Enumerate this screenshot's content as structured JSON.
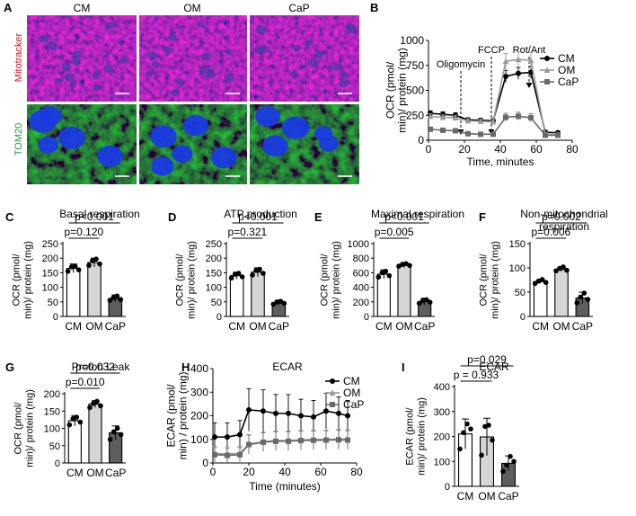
{
  "panel_a": {
    "letter": "A",
    "columns": [
      "CM",
      "OM",
      "CaP"
    ],
    "rows": [
      "Mitotracker",
      "TOM20"
    ],
    "row_colors": [
      "#d4141a",
      "#1f9a3a"
    ]
  },
  "chart_data": [
    {
      "id": "B",
      "letter": "B",
      "type": "line",
      "xlabel": "Time, minutes",
      "ylabel": "OCR (pmol/min)/ protein (mg)",
      "xlim": [
        0,
        80
      ],
      "ylim": [
        0,
        1000
      ],
      "xticks": [
        0,
        20,
        40,
        60,
        80
      ],
      "yticks": [
        0,
        250,
        500,
        750,
        1000
      ],
      "x": [
        1,
        8,
        15,
        22,
        29,
        36,
        43,
        50,
        57,
        65,
        72
      ],
      "series": [
        {
          "name": "CM",
          "color": "#000000",
          "marker": "circle",
          "values": [
            270,
            260,
            250,
            205,
            200,
            195,
            640,
            670,
            680,
            80,
            75
          ],
          "errors": [
            25,
            25,
            25,
            20,
            20,
            20,
            60,
            60,
            60,
            20,
            20
          ]
        },
        {
          "name": "OM",
          "color": "#9a9a9a",
          "marker": "triangle",
          "values": [
            240,
            230,
            225,
            195,
            190,
            185,
            790,
            810,
            800,
            60,
            55
          ],
          "errors": [
            25,
            25,
            25,
            20,
            20,
            20,
            80,
            80,
            80,
            20,
            20
          ]
        },
        {
          "name": "CaP",
          "color": "#6a6a6a",
          "marker": "square",
          "values": [
            110,
            100,
            95,
            65,
            60,
            60,
            230,
            240,
            225,
            50,
            50
          ],
          "errors": [
            15,
            15,
            15,
            10,
            10,
            10,
            40,
            40,
            40,
            10,
            10
          ]
        }
      ],
      "annotations": [
        {
          "label": "Oligomycin",
          "x": 18
        },
        {
          "label": "FCCP",
          "x": 35
        },
        {
          "label": "Rot/Ant",
          "x": 56
        }
      ],
      "legend": "top-right"
    },
    {
      "id": "C",
      "letter": "C",
      "type": "bar",
      "title": "Basal respiration",
      "ylabel": "OCR (pmol/min)/ protein (mg)",
      "ylim": [
        0,
        250
      ],
      "yticks": [
        0,
        50,
        100,
        150,
        200,
        250
      ],
      "categories": [
        "CM",
        "OM",
        "CaP"
      ],
      "values": [
        165,
        185,
        62
      ],
      "errors": [
        15,
        15,
        12
      ],
      "points": [
        [
          155,
          170,
          172,
          160
        ],
        [
          175,
          192,
          197,
          180
        ],
        [
          55,
          65,
          70,
          58
        ]
      ],
      "comparisons": [
        {
          "label": "p=0.120",
          "from": 0,
          "to": 1
        },
        {
          "label": "p<0.001",
          "from": 0,
          "to": 2
        }
      ]
    },
    {
      "id": "D",
      "letter": "D",
      "type": "bar",
      "title": "ATP production",
      "ylabel": "OCR (pmol/min)/ protein (mg)",
      "ylim": [
        0,
        250
      ],
      "yticks": [
        0,
        50,
        100,
        150,
        200,
        250
      ],
      "categories": [
        "CM",
        "OM",
        "CaP"
      ],
      "values": [
        140,
        152,
        47
      ],
      "errors": [
        12,
        15,
        8
      ],
      "points": [
        [
          132,
          145,
          148,
          136
        ],
        [
          142,
          158,
          162,
          148
        ],
        [
          42,
          50,
          52,
          45
        ]
      ],
      "comparisons": [
        {
          "label": "p=0.321",
          "from": 0,
          "to": 1
        },
        {
          "label": "p<0.001",
          "from": 0,
          "to": 2
        }
      ]
    },
    {
      "id": "E",
      "letter": "E",
      "type": "bar",
      "title": "Maximal respiration",
      "ylabel": "OCR (pmol/min)/ protein (mg)",
      "ylim": [
        0,
        1000
      ],
      "yticks": [
        0,
        200,
        400,
        600,
        800,
        1000
      ],
      "categories": [
        "CM",
        "OM",
        "CaP"
      ],
      "values": [
        580,
        705,
        205
      ],
      "errors": [
        60,
        35,
        45
      ],
      "points": [
        [
          540,
          600,
          620,
          560
        ],
        [
          690,
          715,
          725,
          700
        ],
        [
          180,
          215,
          230,
          195
        ]
      ],
      "comparisons": [
        {
          "label": "p=0.005",
          "from": 0,
          "to": 1
        },
        {
          "label": "p<0.001",
          "from": 0,
          "to": 2
        }
      ]
    },
    {
      "id": "F",
      "letter": "F",
      "type": "bar",
      "title": "Non-mitochondrial respiration",
      "title_lines": [
        "Non-mitochondrial",
        "respiration"
      ],
      "ylabel": "OCR (pmol/min)/ protein (mg)",
      "ylim": [
        0,
        150
      ],
      "yticks": [
        0,
        50,
        100,
        150
      ],
      "categories": [
        "CM",
        "OM",
        "CaP"
      ],
      "values": [
        72,
        97,
        38
      ],
      "errors": [
        4,
        4,
        12
      ],
      "points": [
        [
          68,
          73,
          76,
          70
        ],
        [
          94,
          99,
          102,
          95
        ],
        [
          28,
          40,
          48,
          35
        ]
      ],
      "comparisons": [
        {
          "label": "p=0.006",
          "from": 0,
          "to": 1
        },
        {
          "label": "p=0.002",
          "from": 0,
          "to": 2
        }
      ]
    },
    {
      "id": "G",
      "letter": "G",
      "type": "bar",
      "title": "Proton Leak",
      "ylabel": "OCR (pmol/min)/ protein (mg)",
      "ylim": [
        0,
        200
      ],
      "yticks": [
        0,
        50,
        100,
        150,
        200
      ],
      "categories": [
        "CM",
        "OM",
        "CaP"
      ],
      "values": [
        122,
        170,
        87
      ],
      "errors": [
        15,
        10,
        20
      ],
      "points": [
        [
          110,
          128,
          132,
          118
        ],
        [
          160,
          172,
          178,
          165
        ],
        [
          68,
          90,
          100,
          82
        ]
      ],
      "comparisons": [
        {
          "label": "p=0.010",
          "from": 0,
          "to": 1
        },
        {
          "label": "p=0.032",
          "from": 0,
          "to": 2
        }
      ]
    },
    {
      "id": "H",
      "letter": "H",
      "type": "line",
      "title": "ECAR",
      "xlabel": "Time (minutes)",
      "ylabel": "ECAR (pmol/min) / protein (mg)",
      "xlim": [
        0,
        80
      ],
      "ylim": [
        0,
        400
      ],
      "xticks": [
        0,
        20,
        40,
        60,
        80
      ],
      "yticks": [
        0,
        100,
        200,
        300,
        400
      ],
      "x": [
        1,
        8,
        15,
        20,
        28,
        35,
        42,
        49,
        56,
        63,
        70,
        75
      ],
      "series": [
        {
          "name": "CM",
          "color": "#000000",
          "marker": "circle",
          "values": [
            110,
            110,
            120,
            225,
            220,
            210,
            210,
            200,
            195,
            220,
            210,
            200
          ],
          "errors": [
            60,
            60,
            60,
            90,
            90,
            80,
            80,
            70,
            70,
            75,
            70,
            65
          ]
        },
        {
          "name": "OM",
          "color": "#9a9a9a",
          "marker": "triangle",
          "values": [
            40,
            38,
            40,
            80,
            90,
            95,
            95,
            98,
            100,
            100,
            102,
            100
          ],
          "errors": [
            30,
            30,
            30,
            40,
            40,
            40,
            40,
            40,
            40,
            40,
            40,
            40
          ]
        },
        {
          "name": "CaP",
          "color": "#6a6a6a",
          "marker": "square",
          "values": [
            35,
            32,
            35,
            78,
            88,
            92,
            92,
            95,
            96,
            97,
            98,
            97
          ],
          "errors": [
            30,
            30,
            30,
            40,
            40,
            40,
            40,
            40,
            40,
            40,
            40,
            40
          ]
        }
      ],
      "legend": "top-right"
    },
    {
      "id": "I",
      "letter": "I",
      "type": "bar",
      "title": "ECAR",
      "ylabel": "ECAR (pmol/min)/ protein (mg)",
      "ylim": [
        0,
        400
      ],
      "yticks": [
        0,
        100,
        200,
        300,
        400
      ],
      "categories": [
        "CM",
        "OM",
        "CaP"
      ],
      "values": [
        210,
        198,
        92
      ],
      "errors": [
        60,
        75,
        30
      ],
      "points": [
        [
          150,
          215,
          250,
          230
        ],
        [
          125,
          240,
          245,
          185
        ],
        [
          60,
          85,
          120,
          100
        ]
      ],
      "comparisons": [
        {
          "label": "p = 0.933",
          "from": 0,
          "to": 1
        },
        {
          "label": "p=0.029",
          "from": 0,
          "to": 2
        }
      ]
    }
  ]
}
